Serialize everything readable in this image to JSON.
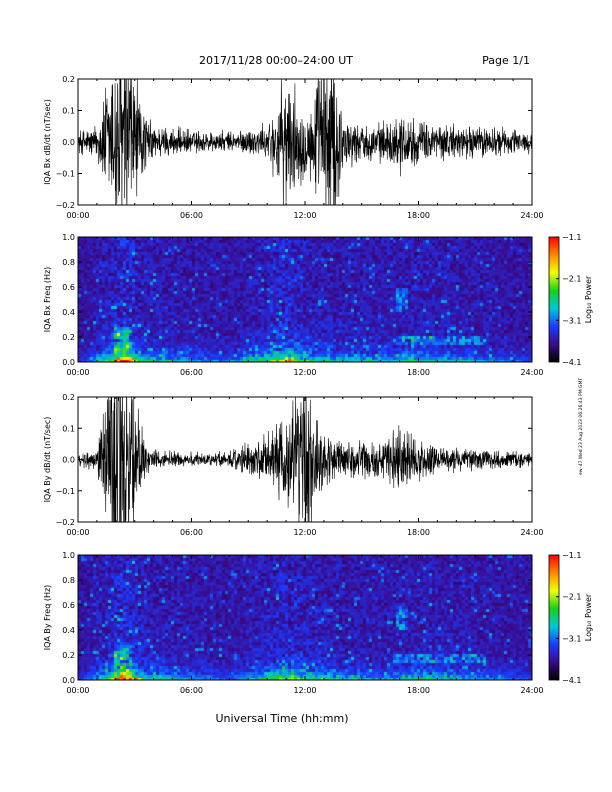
{
  "header": {
    "title": "2017/11/28  00:00–24:00 UT",
    "page": "Page 1/1"
  },
  "side_stamp": "ew–47 Wed 23 Aug 2023 06:26:43 PM GMT",
  "xlabel": "Universal Time (hh:mm)",
  "xticks": [
    "00:00",
    "06:00",
    "12:00",
    "18:00",
    "24:00"
  ],
  "colorbar": {
    "label": "Log₁₀ Power",
    "ticks": [
      "−1.1",
      "−2.1",
      "−3.1",
      "−4.1"
    ],
    "range": [
      -4.1,
      -1.1
    ],
    "colors": [
      "#000000",
      "#3b0a8a",
      "#1a3cff",
      "#00c8d8",
      "#18d018",
      "#f4ff00",
      "#ff8800",
      "#ff0000"
    ]
  },
  "chart_data": [
    {
      "type": "line",
      "panel": "bx-waveform",
      "ylabel": "IQA Bx dB/dt (nT/sec)",
      "ylim": [
        -0.2,
        0.2
      ],
      "xlim_hours": [
        0,
        24
      ],
      "yticks": [
        "0.2",
        "0.1",
        "0.0",
        "−0.1",
        "−0.2"
      ],
      "amplitude_envelope": {
        "hours": [
          0,
          1,
          1.5,
          2,
          2.5,
          3,
          3.5,
          4,
          6,
          8,
          10,
          10.5,
          11,
          11.5,
          12,
          12.5,
          13,
          13.5,
          14,
          15,
          16.5,
          17,
          18,
          20,
          22,
          24
        ],
        "amp": [
          0.035,
          0.05,
          0.18,
          0.3,
          0.35,
          0.22,
          0.09,
          0.05,
          0.035,
          0.03,
          0.05,
          0.12,
          0.2,
          0.15,
          0.1,
          0.14,
          0.3,
          0.3,
          0.08,
          0.05,
          0.06,
          0.09,
          0.06,
          0.05,
          0.045,
          0.03
        ]
      }
    },
    {
      "type": "heatmap",
      "panel": "bx-spectrogram",
      "ylabel": "IQA Bx Freq (Hz)",
      "ylim": [
        0,
        1.0
      ],
      "xlim_hours": [
        0,
        24
      ],
      "yticks": [
        "1.0",
        "0.8",
        "0.6",
        "0.4",
        "0.2",
        "0.0"
      ]
    },
    {
      "type": "line",
      "panel": "by-waveform",
      "ylabel": "IQA By dB/dt (nT/sec)",
      "ylim": [
        -0.2,
        0.2
      ],
      "xlim_hours": [
        0,
        24
      ],
      "yticks": [
        "0.2",
        "0.1",
        "0.0",
        "−0.1",
        "−0.2"
      ],
      "amplitude_envelope": {
        "hours": [
          0,
          1,
          1.5,
          2,
          2.5,
          3,
          3.5,
          4,
          6,
          8,
          9.5,
          10.5,
          11,
          11.5,
          12,
          12.5,
          13,
          14,
          15,
          16.5,
          17,
          18,
          20,
          22,
          24
        ],
        "amp": [
          0.02,
          0.03,
          0.2,
          0.35,
          0.3,
          0.2,
          0.06,
          0.03,
          0.02,
          0.025,
          0.06,
          0.1,
          0.14,
          0.16,
          0.3,
          0.14,
          0.08,
          0.06,
          0.05,
          0.08,
          0.1,
          0.06,
          0.035,
          0.03,
          0.02
        ]
      }
    },
    {
      "type": "heatmap",
      "panel": "by-spectrogram",
      "ylabel": "IQA By Freq (Hz)",
      "ylim": [
        0,
        1.0
      ],
      "xlim_hours": [
        0,
        24
      ],
      "yticks": [
        "1.0",
        "0.8",
        "0.6",
        "0.4",
        "0.2",
        "0.0"
      ]
    }
  ]
}
